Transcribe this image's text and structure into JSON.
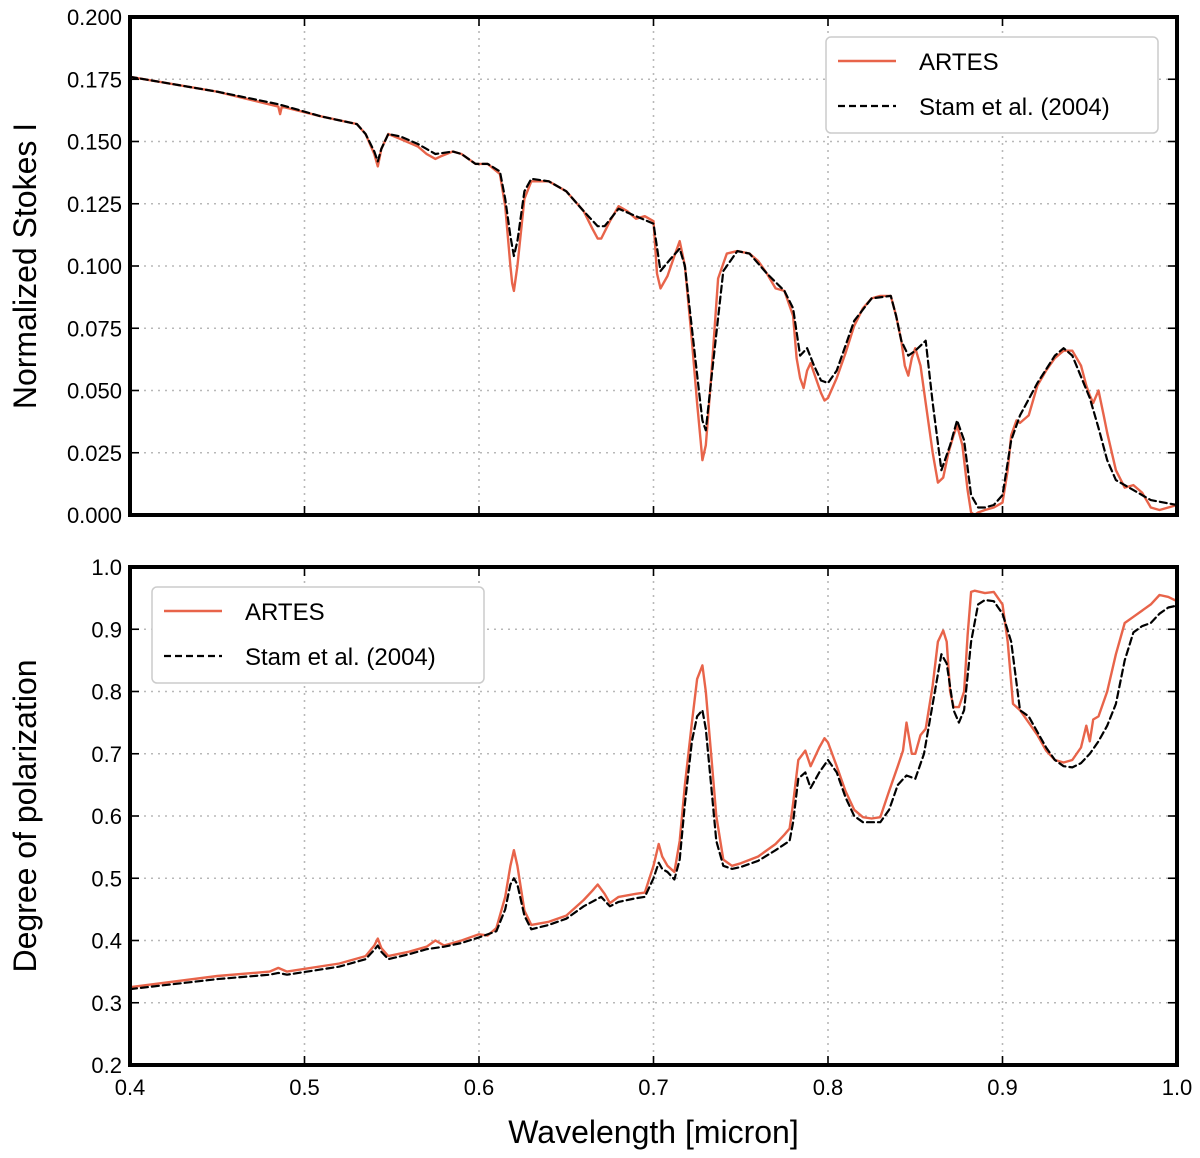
{
  "chart_data": [
    {
      "type": "line",
      "xlabel": "",
      "ylabel": "Normalized Stokes I",
      "xlim": [
        0.4,
        1.0
      ],
      "ylim": [
        0.0,
        0.2
      ],
      "grid": true,
      "legend_position": "top-right",
      "x_ticks": [
        "0.4",
        "0.5",
        "0.6",
        "0.7",
        "0.8",
        "0.9",
        "1.0"
      ],
      "x_ticklabels_shown": false,
      "y_ticks": [
        "0.000",
        "0.025",
        "0.050",
        "0.075",
        "0.100",
        "0.125",
        "0.150",
        "0.175",
        "0.200"
      ],
      "series": [
        {
          "name": "ARTES",
          "color": "#E8644A",
          "style": "solid",
          "x": [
            0.4,
            0.45,
            0.485,
            0.486,
            0.487,
            0.51,
            0.53,
            0.535,
            0.54,
            0.542,
            0.544,
            0.548,
            0.555,
            0.565,
            0.57,
            0.575,
            0.578,
            0.585,
            0.59,
            0.598,
            0.605,
            0.612,
            0.615,
            0.618,
            0.619,
            0.62,
            0.622,
            0.626,
            0.63,
            0.64,
            0.65,
            0.66,
            0.665,
            0.668,
            0.67,
            0.675,
            0.68,
            0.685,
            0.69,
            0.695,
            0.7,
            0.702,
            0.704,
            0.708,
            0.712,
            0.715,
            0.718,
            0.722,
            0.725,
            0.727,
            0.728,
            0.73,
            0.733,
            0.737,
            0.742,
            0.748,
            0.755,
            0.76,
            0.765,
            0.77,
            0.775,
            0.78,
            0.782,
            0.784,
            0.786,
            0.788,
            0.79,
            0.793,
            0.796,
            0.798,
            0.8,
            0.805,
            0.81,
            0.815,
            0.82,
            0.825,
            0.83,
            0.833,
            0.836,
            0.839,
            0.842,
            0.844,
            0.846,
            0.848,
            0.85,
            0.853,
            0.856,
            0.86,
            0.863,
            0.866,
            0.869,
            0.872,
            0.874,
            0.877,
            0.88,
            0.882,
            0.884,
            0.886,
            0.89,
            0.895,
            0.9,
            0.903,
            0.905,
            0.908,
            0.91,
            0.915,
            0.92,
            0.925,
            0.93,
            0.935,
            0.94,
            0.945,
            0.948,
            0.95,
            0.952,
            0.955,
            0.958,
            0.96,
            0.965,
            0.97,
            0.975,
            0.98,
            0.985,
            0.99,
            1.0
          ],
          "y": [
            0.176,
            0.17,
            0.164,
            0.161,
            0.164,
            0.16,
            0.157,
            0.153,
            0.145,
            0.14,
            0.147,
            0.153,
            0.151,
            0.148,
            0.145,
            0.143,
            0.144,
            0.146,
            0.145,
            0.141,
            0.141,
            0.137,
            0.124,
            0.1,
            0.093,
            0.09,
            0.1,
            0.127,
            0.134,
            0.134,
            0.13,
            0.122,
            0.115,
            0.111,
            0.111,
            0.118,
            0.124,
            0.122,
            0.119,
            0.12,
            0.118,
            0.097,
            0.091,
            0.096,
            0.104,
            0.11,
            0.1,
            0.07,
            0.045,
            0.03,
            0.022,
            0.028,
            0.055,
            0.095,
            0.105,
            0.106,
            0.105,
            0.102,
            0.097,
            0.091,
            0.09,
            0.08,
            0.063,
            0.055,
            0.051,
            0.058,
            0.061,
            0.055,
            0.049,
            0.046,
            0.047,
            0.055,
            0.065,
            0.076,
            0.083,
            0.087,
            0.088,
            0.088,
            0.088,
            0.08,
            0.07,
            0.06,
            0.056,
            0.063,
            0.067,
            0.06,
            0.045,
            0.025,
            0.013,
            0.015,
            0.025,
            0.032,
            0.036,
            0.028,
            0.01,
            0.001,
            0.0,
            0.001,
            0.002,
            0.003,
            0.005,
            0.018,
            0.032,
            0.038,
            0.037,
            0.04,
            0.052,
            0.058,
            0.063,
            0.066,
            0.066,
            0.06,
            0.052,
            0.048,
            0.045,
            0.05,
            0.04,
            0.033,
            0.018,
            0.011,
            0.012,
            0.009,
            0.003,
            0.002,
            0.004
          ]
        },
        {
          "name": "Stam et al. (2004)",
          "color": "#000000",
          "style": "dashed",
          "x": [
            0.4,
            0.45,
            0.485,
            0.51,
            0.53,
            0.535,
            0.54,
            0.542,
            0.544,
            0.548,
            0.555,
            0.565,
            0.575,
            0.585,
            0.59,
            0.598,
            0.605,
            0.612,
            0.615,
            0.618,
            0.62,
            0.622,
            0.626,
            0.63,
            0.64,
            0.65,
            0.66,
            0.668,
            0.672,
            0.68,
            0.69,
            0.7,
            0.704,
            0.71,
            0.715,
            0.718,
            0.722,
            0.726,
            0.728,
            0.73,
            0.734,
            0.74,
            0.748,
            0.755,
            0.765,
            0.775,
            0.78,
            0.784,
            0.788,
            0.792,
            0.796,
            0.8,
            0.805,
            0.815,
            0.825,
            0.836,
            0.839,
            0.842,
            0.846,
            0.85,
            0.856,
            0.86,
            0.865,
            0.87,
            0.874,
            0.878,
            0.882,
            0.886,
            0.89,
            0.895,
            0.9,
            0.905,
            0.91,
            0.92,
            0.93,
            0.935,
            0.94,
            0.95,
            0.955,
            0.96,
            0.965,
            0.97,
            0.975,
            0.985,
            1.0
          ],
          "y": [
            0.176,
            0.17,
            0.165,
            0.16,
            0.157,
            0.153,
            0.146,
            0.142,
            0.147,
            0.153,
            0.152,
            0.149,
            0.145,
            0.146,
            0.145,
            0.141,
            0.141,
            0.138,
            0.127,
            0.112,
            0.104,
            0.11,
            0.13,
            0.135,
            0.134,
            0.13,
            0.122,
            0.116,
            0.116,
            0.123,
            0.12,
            0.117,
            0.098,
            0.103,
            0.107,
            0.1,
            0.075,
            0.05,
            0.038,
            0.034,
            0.06,
            0.098,
            0.106,
            0.105,
            0.097,
            0.09,
            0.083,
            0.064,
            0.067,
            0.06,
            0.054,
            0.053,
            0.058,
            0.078,
            0.087,
            0.088,
            0.08,
            0.07,
            0.064,
            0.066,
            0.07,
            0.045,
            0.018,
            0.028,
            0.038,
            0.03,
            0.008,
            0.003,
            0.003,
            0.004,
            0.008,
            0.03,
            0.04,
            0.053,
            0.064,
            0.067,
            0.064,
            0.047,
            0.035,
            0.022,
            0.014,
            0.012,
            0.01,
            0.006,
            0.004
          ]
        }
      ]
    },
    {
      "type": "line",
      "xlabel": "Wavelength [micron]",
      "ylabel": "Degree of polarization",
      "xlim": [
        0.4,
        1.0
      ],
      "ylim": [
        0.2,
        1.0
      ],
      "grid": true,
      "legend_position": "top-left",
      "x_ticks": [
        "0.4",
        "0.5",
        "0.6",
        "0.7",
        "0.8",
        "0.9",
        "1.0"
      ],
      "x_ticklabels_shown": true,
      "y_ticks": [
        "0.2",
        "0.3",
        "0.4",
        "0.5",
        "0.6",
        "0.7",
        "0.8",
        "0.9",
        "1.0"
      ],
      "series": [
        {
          "name": "ARTES",
          "color": "#E8644A",
          "style": "solid",
          "x": [
            0.4,
            0.45,
            0.48,
            0.485,
            0.49,
            0.52,
            0.535,
            0.54,
            0.542,
            0.544,
            0.548,
            0.56,
            0.57,
            0.575,
            0.58,
            0.59,
            0.6,
            0.605,
            0.61,
            0.615,
            0.618,
            0.62,
            0.622,
            0.626,
            0.63,
            0.64,
            0.65,
            0.66,
            0.665,
            0.668,
            0.672,
            0.675,
            0.68,
            0.69,
            0.695,
            0.7,
            0.703,
            0.705,
            0.708,
            0.712,
            0.715,
            0.718,
            0.722,
            0.725,
            0.728,
            0.73,
            0.733,
            0.736,
            0.74,
            0.745,
            0.75,
            0.76,
            0.77,
            0.775,
            0.778,
            0.78,
            0.783,
            0.787,
            0.79,
            0.795,
            0.798,
            0.8,
            0.805,
            0.81,
            0.815,
            0.82,
            0.825,
            0.83,
            0.835,
            0.84,
            0.843,
            0.845,
            0.848,
            0.85,
            0.853,
            0.856,
            0.86,
            0.863,
            0.866,
            0.868,
            0.87,
            0.872,
            0.875,
            0.878,
            0.88,
            0.882,
            0.884,
            0.89,
            0.895,
            0.9,
            0.903,
            0.906,
            0.91,
            0.915,
            0.92,
            0.925,
            0.93,
            0.935,
            0.94,
            0.945,
            0.948,
            0.95,
            0.952,
            0.955,
            0.96,
            0.965,
            0.97,
            0.975,
            0.98,
            0.985,
            0.99,
            0.995,
            1.0
          ],
          "y": [
            0.325,
            0.343,
            0.35,
            0.356,
            0.35,
            0.363,
            0.375,
            0.392,
            0.403,
            0.388,
            0.375,
            0.382,
            0.39,
            0.4,
            0.392,
            0.4,
            0.41,
            0.408,
            0.42,
            0.47,
            0.52,
            0.545,
            0.52,
            0.448,
            0.425,
            0.43,
            0.44,
            0.465,
            0.48,
            0.49,
            0.475,
            0.46,
            0.47,
            0.475,
            0.477,
            0.52,
            0.555,
            0.535,
            0.52,
            0.51,
            0.56,
            0.65,
            0.75,
            0.82,
            0.842,
            0.8,
            0.7,
            0.6,
            0.53,
            0.52,
            0.524,
            0.535,
            0.555,
            0.57,
            0.58,
            0.62,
            0.69,
            0.705,
            0.68,
            0.71,
            0.725,
            0.718,
            0.68,
            0.64,
            0.61,
            0.598,
            0.596,
            0.598,
            0.64,
            0.68,
            0.705,
            0.75,
            0.7,
            0.7,
            0.73,
            0.74,
            0.81,
            0.88,
            0.898,
            0.88,
            0.8,
            0.775,
            0.775,
            0.8,
            0.89,
            0.96,
            0.962,
            0.958,
            0.96,
            0.94,
            0.88,
            0.78,
            0.77,
            0.75,
            0.73,
            0.705,
            0.69,
            0.686,
            0.69,
            0.71,
            0.745,
            0.72,
            0.755,
            0.76,
            0.8,
            0.86,
            0.91,
            0.92,
            0.93,
            0.94,
            0.955,
            0.952,
            0.945
          ]
        },
        {
          "name": "Stam et al. (2004)",
          "color": "#000000",
          "style": "dashed",
          "x": [
            0.4,
            0.45,
            0.48,
            0.485,
            0.49,
            0.52,
            0.535,
            0.54,
            0.542,
            0.544,
            0.548,
            0.56,
            0.57,
            0.58,
            0.59,
            0.6,
            0.61,
            0.615,
            0.618,
            0.62,
            0.622,
            0.626,
            0.63,
            0.64,
            0.65,
            0.66,
            0.67,
            0.675,
            0.68,
            0.69,
            0.695,
            0.7,
            0.703,
            0.705,
            0.708,
            0.712,
            0.715,
            0.718,
            0.722,
            0.725,
            0.728,
            0.73,
            0.733,
            0.736,
            0.74,
            0.745,
            0.75,
            0.76,
            0.77,
            0.778,
            0.78,
            0.783,
            0.787,
            0.79,
            0.795,
            0.8,
            0.805,
            0.81,
            0.815,
            0.82,
            0.83,
            0.835,
            0.84,
            0.845,
            0.85,
            0.855,
            0.86,
            0.865,
            0.868,
            0.872,
            0.875,
            0.878,
            0.882,
            0.886,
            0.89,
            0.895,
            0.9,
            0.905,
            0.91,
            0.915,
            0.92,
            0.925,
            0.93,
            0.935,
            0.94,
            0.945,
            0.95,
            0.955,
            0.96,
            0.965,
            0.97,
            0.975,
            0.98,
            0.985,
            0.99,
            0.995,
            1.0
          ],
          "y": [
            0.322,
            0.338,
            0.345,
            0.348,
            0.345,
            0.358,
            0.37,
            0.385,
            0.392,
            0.382,
            0.37,
            0.378,
            0.386,
            0.39,
            0.396,
            0.405,
            0.415,
            0.45,
            0.49,
            0.5,
            0.49,
            0.44,
            0.418,
            0.425,
            0.435,
            0.455,
            0.47,
            0.455,
            0.462,
            0.468,
            0.47,
            0.5,
            0.525,
            0.515,
            0.51,
            0.498,
            0.53,
            0.62,
            0.72,
            0.76,
            0.77,
            0.74,
            0.65,
            0.56,
            0.52,
            0.515,
            0.518,
            0.528,
            0.545,
            0.56,
            0.59,
            0.66,
            0.67,
            0.645,
            0.67,
            0.69,
            0.67,
            0.63,
            0.6,
            0.59,
            0.59,
            0.61,
            0.65,
            0.665,
            0.66,
            0.7,
            0.78,
            0.86,
            0.845,
            0.77,
            0.75,
            0.77,
            0.88,
            0.94,
            0.947,
            0.945,
            0.925,
            0.88,
            0.77,
            0.76,
            0.735,
            0.71,
            0.69,
            0.68,
            0.678,
            0.685,
            0.7,
            0.72,
            0.745,
            0.78,
            0.85,
            0.895,
            0.905,
            0.91,
            0.925,
            0.935,
            0.938
          ]
        }
      ]
    }
  ]
}
